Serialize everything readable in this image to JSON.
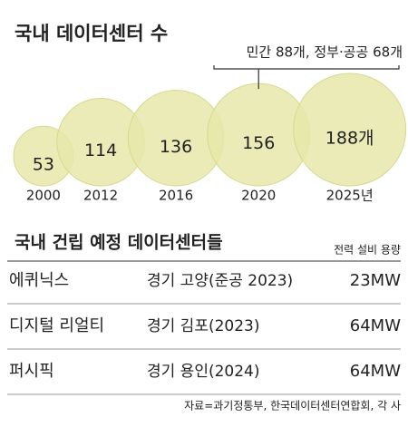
{
  "chart_data": {
    "type": "bubble",
    "title": "국내 데이터센터 수",
    "categories": [
      "2000",
      "2012",
      "2016",
      "2020",
      "2025년"
    ],
    "values": [
      53,
      114,
      136,
      156,
      188
    ],
    "value_labels": [
      "53",
      "114",
      "136",
      "156",
      "188개"
    ],
    "annotation": "민간 88개, 정부·공공 68개",
    "color": "#e6e7a9"
  },
  "table": {
    "title": "국내 건립 예정 데이터센터들",
    "note": "전력 설비 용량",
    "rows": [
      [
        "에퀴닉스",
        "경기 고양(준공 2023)",
        "23MW"
      ],
      [
        "디지털 리얼티",
        "경기 김포(2023)",
        "64MW"
      ],
      [
        "퍼시픽",
        "경기 용인(2024)",
        "64MW"
      ]
    ],
    "source": "자료=과기정통부, 한국데이터센터연합회, 각 사"
  }
}
